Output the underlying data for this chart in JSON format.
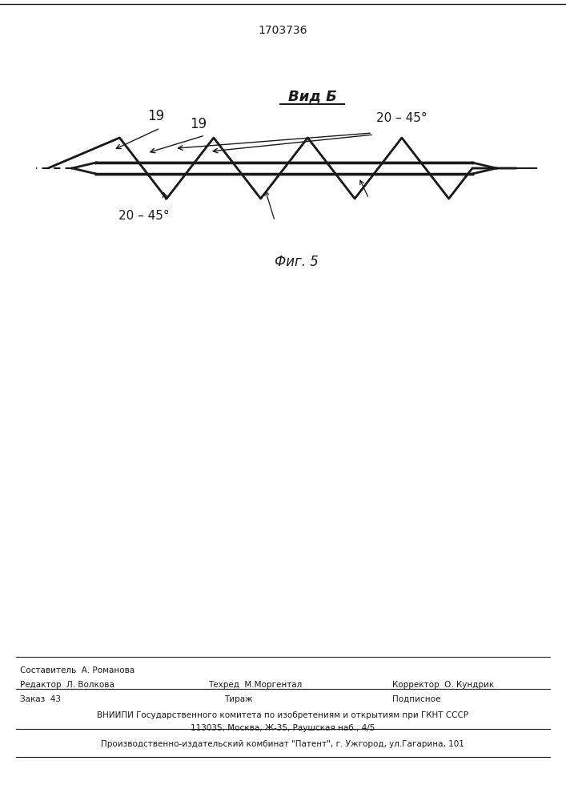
{
  "patent_number": "1703736",
  "background_color": "#ffffff",
  "line_color": "#1a1a1a",
  "title_view": "Вид Б",
  "fig_caption": "Фиг. 5",
  "label_19_left": "19",
  "label_19_right": "19",
  "label_angle_bottom": "20 – 45°",
  "label_angle_top": "20 – 45°",
  "footer_line1_left": "Редактор  Л. Волкова",
  "footer_line1_center_top": "Составитель  А. Романова",
  "footer_line1_center_bot": "Техред  М.Моргентал",
  "footer_line1_right": "Корректор  О. Кундрик",
  "footer_line2_left": "Заказ  43",
  "footer_line2_center": "Тираж",
  "footer_line2_right": "Подписное",
  "footer_line3": "ВНИИПИ Государственного комитета по изобретениям и открытиям при ГКНТ СССР",
  "footer_line4": "113035, Москва, Ж-35, Раушская наб., 4/5",
  "footer_line5": "Производственно-издательский комбинат \"Патент\", г. Ужгород, ул.Гагарина, 101"
}
